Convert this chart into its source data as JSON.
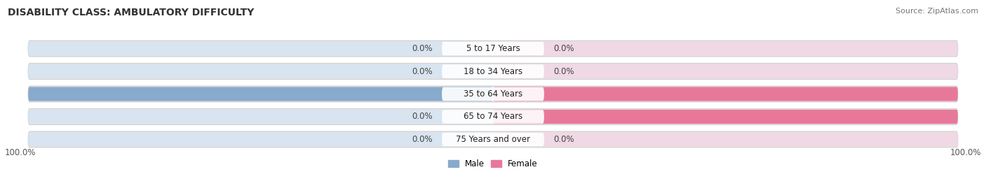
{
  "title": "DISABILITY CLASS: AMBULATORY DIFFICULTY",
  "source": "Source: ZipAtlas.com",
  "categories": [
    "5 to 17 Years",
    "18 to 34 Years",
    "35 to 64 Years",
    "65 to 74 Years",
    "75 Years and over"
  ],
  "male_values": [
    0.0,
    0.0,
    100.0,
    0.0,
    0.0
  ],
  "female_values": [
    0.0,
    0.0,
    100.0,
    100.0,
    0.0
  ],
  "male_color": "#88aacc",
  "female_color": "#e8789a",
  "bar_bg_left": "#d8e4f0",
  "bar_bg_right": "#f0d8e4",
  "outer_bg": "#e8e8e8",
  "title_fontsize": 10,
  "label_fontsize": 8.5,
  "tick_fontsize": 8.5,
  "source_fontsize": 8,
  "background_color": "#ffffff",
  "legend_male": "Male",
  "legend_female": "Female"
}
